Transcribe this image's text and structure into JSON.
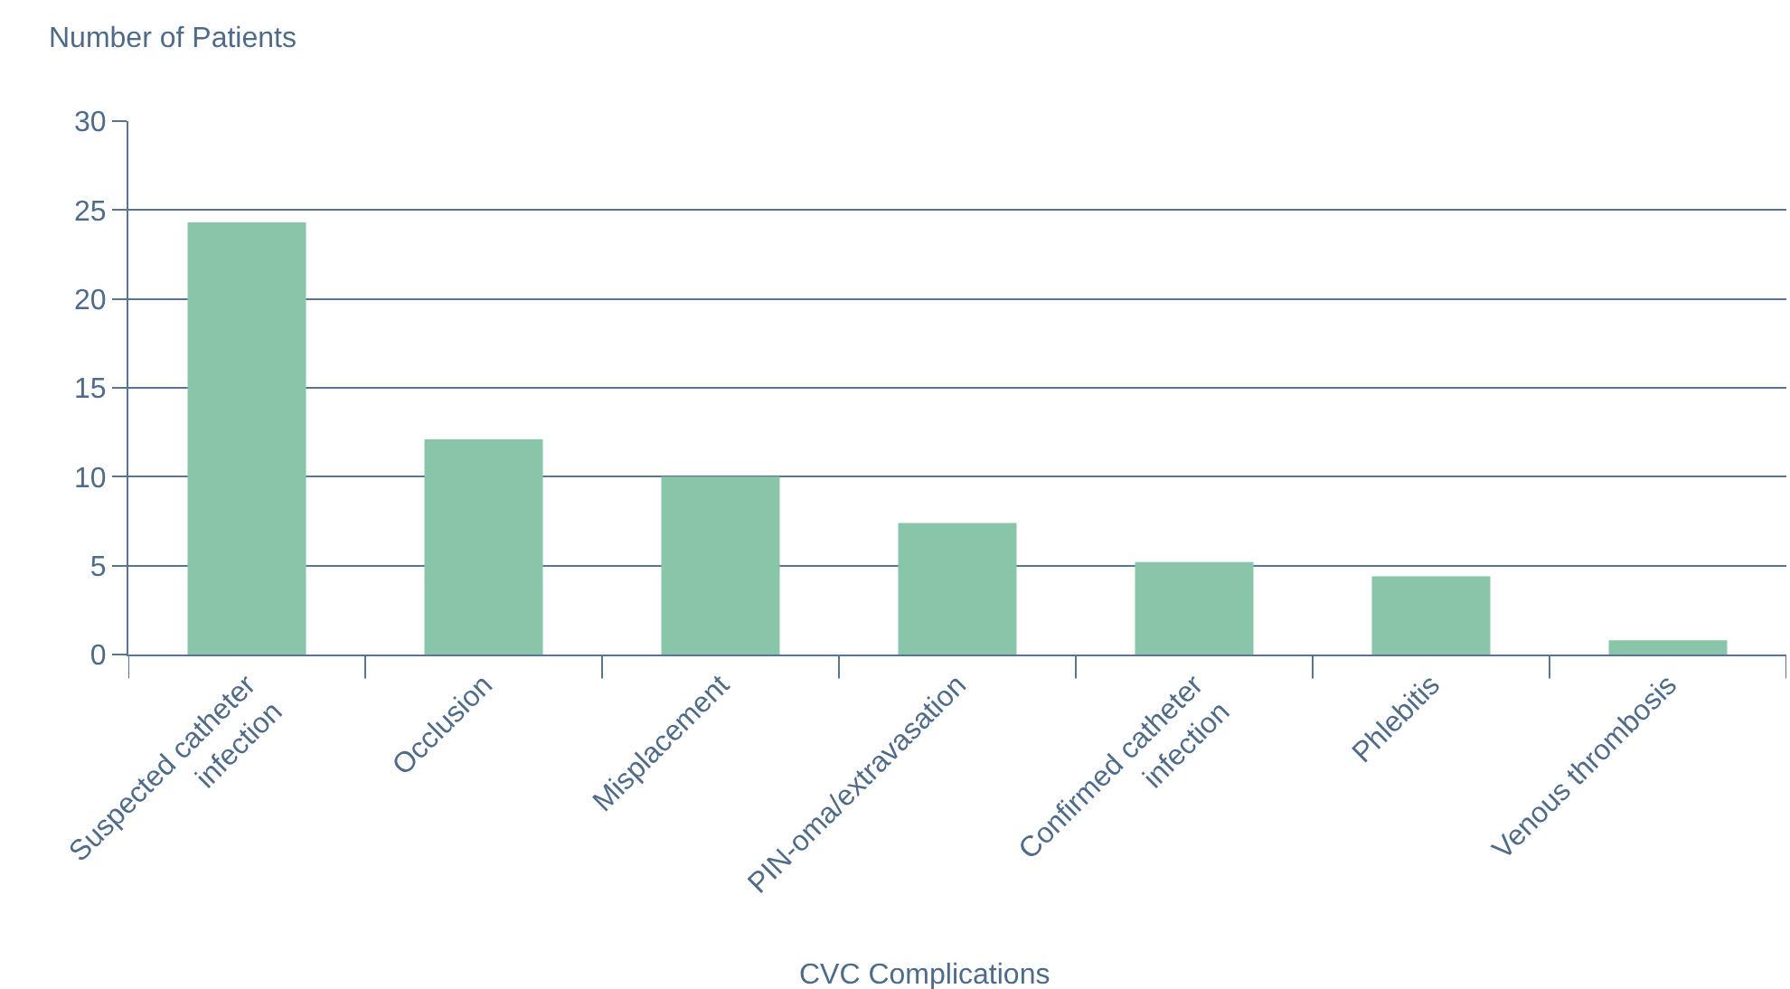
{
  "chart_data": {
    "type": "bar",
    "xlabel": "CVC Complications",
    "ylabel": "Number of Patients",
    "categories": [
      "Suspected catheter\ninfection",
      "Occlusion",
      "Misplacement",
      "PIN-oma/extravasation",
      "Confirmed catheter\ninfection",
      "Phlebitis",
      "Venous thrombosis"
    ],
    "values": [
      24.3,
      12.1,
      10.0,
      7.4,
      5.2,
      4.4,
      0.8
    ],
    "color": "#88c5a9",
    "ylim": [
      0,
      30
    ],
    "yticks": [
      0,
      5,
      10,
      15,
      20,
      25,
      30
    ],
    "grid": "y",
    "legend": false
  }
}
